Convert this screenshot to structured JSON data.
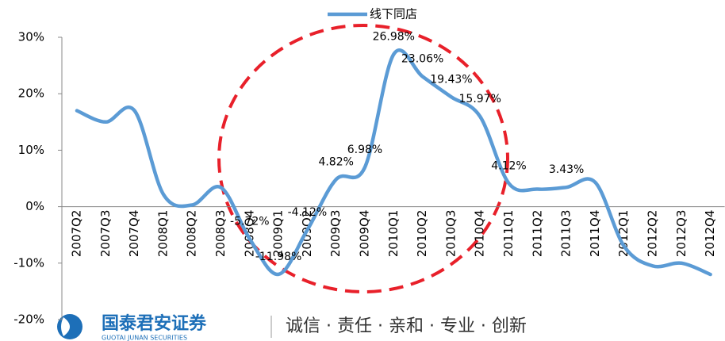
{
  "chart_data": {
    "type": "line",
    "categories": [
      "2007Q2",
      "2007Q3",
      "2007Q4",
      "2008Q1",
      "2008Q2",
      "2008Q3",
      "2008Q4",
      "2009Q1",
      "2009Q2",
      "2009Q3",
      "2009Q4",
      "2010Q1",
      "2010Q2",
      "2010Q3",
      "2010Q4",
      "2011Q1",
      "2011Q2",
      "2011Q3",
      "2011Q4",
      "2012Q1",
      "2012Q2",
      "2012Q3",
      "2012Q4"
    ],
    "series": [
      {
        "name": "线下同店",
        "color": "#5b9bd5",
        "values": [
          17,
          15,
          17,
          2.2,
          0.3,
          3.4,
          -5.72,
          -11.98,
          -4.12,
          4.82,
          6.98,
          26.98,
          23.06,
          19.43,
          15.97,
          4.12,
          3.1,
          3.43,
          4.3,
          -7,
          -10.5,
          -10,
          -12
        ],
        "value_labels": [
          null,
          null,
          null,
          null,
          null,
          null,
          "-5.72%",
          "-11.98%",
          "-4.12%",
          "4.82%",
          "6.98%",
          "26.98%",
          "23.06%",
          "19.43%",
          "15.97%",
          "4.12%",
          null,
          "3.43%",
          null,
          null,
          null,
          null,
          null
        ]
      }
    ],
    "ylim": [
      -20,
      30
    ],
    "yticks": [
      {
        "value": -20,
        "label": "-20%"
      },
      {
        "value": -10,
        "label": "-10%"
      },
      {
        "value": 0,
        "label": "0%"
      },
      {
        "value": 10,
        "label": "10%"
      },
      {
        "value": 20,
        "label": "20%"
      },
      {
        "value": 30,
        "label": "30%"
      }
    ],
    "legend": "top"
  },
  "footer": {
    "company": "国泰君安证券",
    "company_en": "GUOTAI JUNAN SECURITIES",
    "motto": "诚信 · 责任 · 亲和 · 专业 · 创新"
  }
}
